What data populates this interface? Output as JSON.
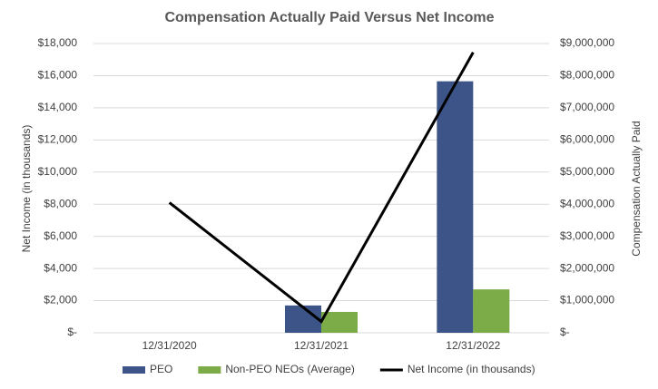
{
  "chart_data": {
    "type": "bar",
    "title": "Compensation Actually Paid Versus Net Income",
    "y_label": "Net Income (in thousands)",
    "y2_label": "Compensation Actually Paid",
    "categories": [
      "12/31/2020",
      "12/31/2021",
      "12/31/2022"
    ],
    "series": [
      {
        "name": "PEO",
        "type": "bar",
        "axis": "y2",
        "color": "#3c5487",
        "values": [
          null,
          850000,
          7825000
        ]
      },
      {
        "name": "Non-PEO NEOs (Average)",
        "type": "bar",
        "axis": "y2",
        "color": "#7cac47",
        "values": [
          null,
          650000,
          1350000
        ]
      },
      {
        "name": "Net Income (in thousands)",
        "type": "line",
        "axis": "y",
        "color": "#000000",
        "values": [
          8100,
          700,
          17450
        ]
      }
    ],
    "ylim": [
      0,
      18000
    ],
    "yticks": [
      {
        "value": 0,
        "label": "$-"
      },
      {
        "value": 2000,
        "label": "$2,000"
      },
      {
        "value": 4000,
        "label": "$4,000"
      },
      {
        "value": 6000,
        "label": "$6,000"
      },
      {
        "value": 8000,
        "label": "$8,000"
      },
      {
        "value": 10000,
        "label": "$10,000"
      },
      {
        "value": 12000,
        "label": "$12,000"
      },
      {
        "value": 14000,
        "label": "$14,000"
      },
      {
        "value": 16000,
        "label": "$16,000"
      },
      {
        "value": 18000,
        "label": "$18,000"
      }
    ],
    "y2lim": [
      0,
      9000000
    ],
    "y2ticks": [
      {
        "value": 0,
        "label": "$-"
      },
      {
        "value": 1000000,
        "label": "$1,000,000"
      },
      {
        "value": 2000000,
        "label": "$2,000,000"
      },
      {
        "value": 3000000,
        "label": "$3,000,000"
      },
      {
        "value": 4000000,
        "label": "$4,000,000"
      },
      {
        "value": 5000000,
        "label": "$5,000,000"
      },
      {
        "value": 6000000,
        "label": "$6,000,000"
      },
      {
        "value": 7000000,
        "label": "$7,000,000"
      },
      {
        "value": 8000000,
        "label": "$8,000,000"
      },
      {
        "value": 9000000,
        "label": "$9,000,000"
      }
    ],
    "grid": true,
    "legend": "bottom"
  }
}
